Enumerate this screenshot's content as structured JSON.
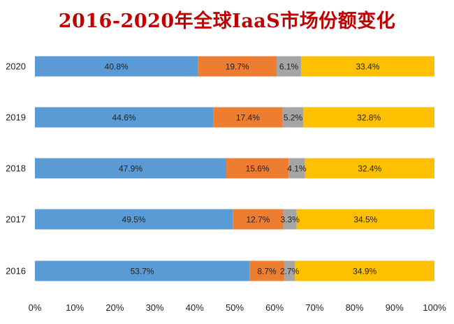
{
  "chart_data": {
    "type": "bar",
    "orientation": "horizontal",
    "stacked": true,
    "title": "2016-2020年全球IaaS市场份额变化",
    "categories": [
      "2020",
      "2019",
      "2018",
      "2017",
      "2016"
    ],
    "series": [
      {
        "color": "#5b9bd5",
        "values": [
          40.8,
          44.6,
          47.9,
          49.5,
          53.7
        ],
        "labels": [
          "40.8%",
          "44.6%",
          "47.9%",
          "49.5%",
          "53.7%"
        ]
      },
      {
        "color": "#ed7d31",
        "values": [
          19.7,
          17.4,
          15.6,
          12.7,
          8.7
        ],
        "labels": [
          "19.7%",
          "17.4%",
          "15.6%",
          "12.7%",
          "8.7%"
        ]
      },
      {
        "color": "#a5a5a5",
        "values": [
          6.1,
          5.2,
          4.1,
          3.3,
          2.7
        ],
        "labels": [
          "6.1%",
          "5.2%",
          "4.1%",
          "3.3%",
          "2.7%"
        ]
      },
      {
        "color": "#ffc000",
        "values": [
          33.4,
          32.8,
          32.4,
          34.5,
          34.9
        ],
        "labels": [
          "33.4%",
          "32.8%",
          "32.4%",
          "34.5%",
          "34.9%"
        ]
      }
    ],
    "xlim": [
      0,
      100
    ],
    "xticks": [
      "0%",
      "10%",
      "20%",
      "30%",
      "40%",
      "50%",
      "60%",
      "70%",
      "80%",
      "90%",
      "100%"
    ],
    "grid": false,
    "legend": "none"
  }
}
